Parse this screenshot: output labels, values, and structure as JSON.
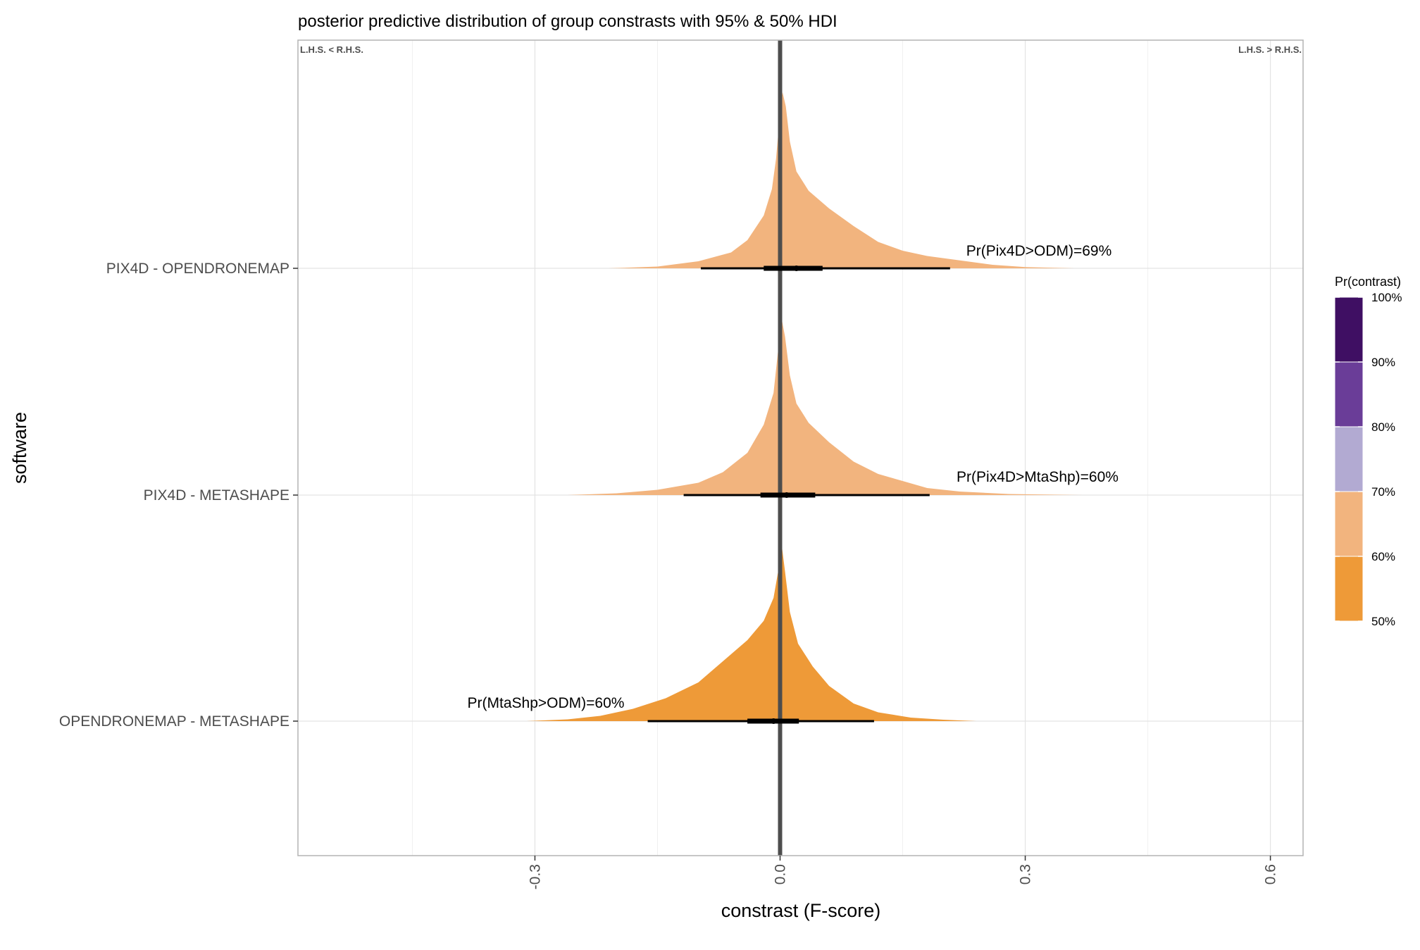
{
  "chart_data": {
    "type": "density",
    "title": "posterior predictive distribution of group constrasts with 95% & 50% HDI",
    "xlabel": "constrast (F-score)",
    "ylabel": "software",
    "xlim": [
      -0.59,
      0.64
    ],
    "x_ticks": [
      -0.3,
      0.0,
      0.3,
      0.6
    ],
    "x_tick_labels": [
      "-0.3",
      "0.0",
      "0.3",
      "0.6"
    ],
    "grid": true,
    "reference_line_x": 0.0,
    "corner_labels": {
      "left": "L.H.S. < R.H.S.",
      "right": "L.H.S. > R.H.S."
    },
    "categories": [
      "PIX4D - OPENDRONEMAP",
      "PIX4D - METASHAPE",
      "OPENDRONEMAP - METASHAPE"
    ],
    "series": [
      {
        "category": "PIX4D - OPENDRONEMAP",
        "annotation": "Pr(Pix4D>ODM)=69%",
        "pr_contrast": 0.69,
        "fill": "#F2B47E",
        "hdi95": [
          -0.097,
          0.208
        ],
        "hdi50": [
          -0.02,
          0.052
        ],
        "median": 0.02,
        "range": [
          -0.21,
          0.36
        ],
        "density": [
          [
            -0.21,
            0.0
          ],
          [
            -0.15,
            0.01
          ],
          [
            -0.1,
            0.04
          ],
          [
            -0.06,
            0.09
          ],
          [
            -0.04,
            0.16
          ],
          [
            -0.02,
            0.3
          ],
          [
            -0.01,
            0.45
          ],
          [
            -0.005,
            0.62
          ],
          [
            0.0,
            0.88
          ],
          [
            0.003,
            1.0
          ],
          [
            0.007,
            0.92
          ],
          [
            0.012,
            0.72
          ],
          [
            0.02,
            0.55
          ],
          [
            0.035,
            0.44
          ],
          [
            0.06,
            0.34
          ],
          [
            0.09,
            0.24
          ],
          [
            0.12,
            0.15
          ],
          [
            0.15,
            0.1
          ],
          [
            0.18,
            0.07
          ],
          [
            0.22,
            0.045
          ],
          [
            0.26,
            0.02
          ],
          [
            0.3,
            0.007
          ],
          [
            0.36,
            0.0
          ]
        ]
      },
      {
        "category": "PIX4D - METASHAPE",
        "annotation": "Pr(Pix4D>MtaShp)=60%",
        "pr_contrast": 0.6,
        "fill": "#F2B47E",
        "hdi95": [
          -0.118,
          0.183
        ],
        "hdi50": [
          -0.024,
          0.043
        ],
        "median": 0.008,
        "range": [
          -0.26,
          0.37
        ],
        "density": [
          [
            -0.26,
            0.0
          ],
          [
            -0.2,
            0.01
          ],
          [
            -0.15,
            0.03
          ],
          [
            -0.1,
            0.07
          ],
          [
            -0.07,
            0.13
          ],
          [
            -0.04,
            0.24
          ],
          [
            -0.02,
            0.4
          ],
          [
            -0.008,
            0.58
          ],
          [
            -0.002,
            0.84
          ],
          [
            0.002,
            1.0
          ],
          [
            0.006,
            0.9
          ],
          [
            0.012,
            0.68
          ],
          [
            0.02,
            0.52
          ],
          [
            0.035,
            0.41
          ],
          [
            0.06,
            0.3
          ],
          [
            0.09,
            0.19
          ],
          [
            0.12,
            0.12
          ],
          [
            0.15,
            0.08
          ],
          [
            0.18,
            0.04
          ],
          [
            0.22,
            0.02
          ],
          [
            0.28,
            0.006
          ],
          [
            0.37,
            0.0
          ]
        ]
      },
      {
        "category": "OPENDRONEMAP - METASHAPE",
        "annotation": "Pr(MtaShp>ODM)=60%",
        "pr_contrast": 0.6,
        "fill": "#EE9A38",
        "hdi95": [
          -0.162,
          0.115
        ],
        "hdi50": [
          -0.04,
          0.023
        ],
        "median": -0.008,
        "range": [
          -0.31,
          0.24
        ],
        "density": [
          [
            -0.31,
            0.0
          ],
          [
            -0.26,
            0.01
          ],
          [
            -0.22,
            0.03
          ],
          [
            -0.18,
            0.07
          ],
          [
            -0.14,
            0.13
          ],
          [
            -0.1,
            0.22
          ],
          [
            -0.07,
            0.34
          ],
          [
            -0.04,
            0.46
          ],
          [
            -0.02,
            0.57
          ],
          [
            -0.008,
            0.7
          ],
          [
            -0.002,
            0.86
          ],
          [
            0.002,
            1.0
          ],
          [
            0.006,
            0.85
          ],
          [
            0.012,
            0.62
          ],
          [
            0.022,
            0.44
          ],
          [
            0.04,
            0.31
          ],
          [
            0.06,
            0.2
          ],
          [
            0.09,
            0.1
          ],
          [
            0.12,
            0.05
          ],
          [
            0.16,
            0.02
          ],
          [
            0.2,
            0.008
          ],
          [
            0.24,
            0.0
          ]
        ]
      }
    ],
    "legend": {
      "title": "Pr(contrast)",
      "placement": "right",
      "labels": [
        "100%",
        "90%",
        "80%",
        "70%",
        "60%",
        "50%"
      ],
      "colors": [
        "#3F0F63",
        "#6A3D98",
        "#B2AAD2",
        "#F2B47E",
        "#EE9A38"
      ]
    }
  }
}
